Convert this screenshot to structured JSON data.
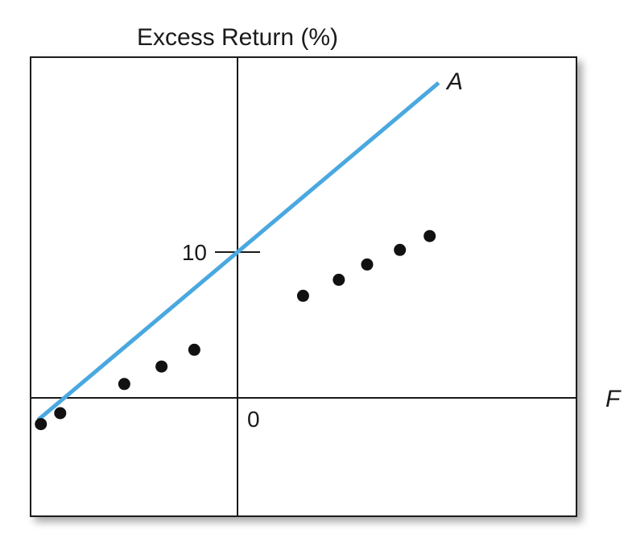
{
  "chart_data": {
    "type": "scatter",
    "title": "Excess Return (%)",
    "xlabel": "F",
    "ylabel": "Excess Return (%)",
    "series_label": "A",
    "xlim": [
      -6.6,
      11.6
    ],
    "ylim": [
      -4.0,
      13.6
    ],
    "y_ticks": [
      {
        "value": 10,
        "label": "10"
      }
    ],
    "origin_label": "0",
    "points": [
      {
        "x": -6.6,
        "y": -1.8
      },
      {
        "x": -5.95,
        "y": -1.05
      },
      {
        "x": -3.8,
        "y": 0.95
      },
      {
        "x": -2.55,
        "y": 2.15
      },
      {
        "x": -1.45,
        "y": 3.3
      },
      {
        "x": 2.2,
        "y": 7.0
      },
      {
        "x": 3.4,
        "y": 8.1
      },
      {
        "x": 4.35,
        "y": 9.15
      },
      {
        "x": 5.45,
        "y": 10.15
      },
      {
        "x": 6.45,
        "y": 11.1
      }
    ],
    "fit_line": {
      "intercept": 10,
      "slope": 1.72,
      "x_range": [
        -6.7,
        6.75
      ]
    },
    "colors": {
      "line": "#4aa8e0",
      "points": "#111111",
      "axes": "#1a1a1a"
    },
    "grid": false
  }
}
